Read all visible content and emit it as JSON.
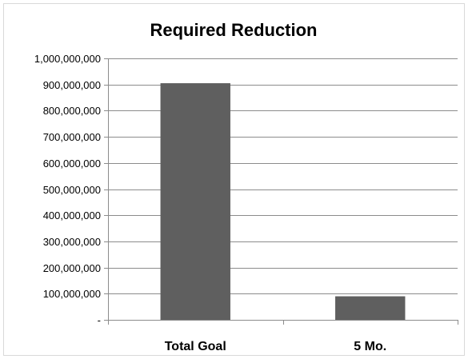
{
  "chart_data": {
    "type": "bar",
    "title": "Required Reduction",
    "xlabel": "",
    "ylabel": "",
    "categories": [
      "Total Goal",
      "5 Mo."
    ],
    "values": [
      905000000,
      90000000
    ],
    "ylim": [
      0,
      1000000000
    ],
    "yticks": [
      0,
      100000000,
      200000000,
      300000000,
      400000000,
      500000000,
      600000000,
      700000000,
      800000000,
      900000000,
      1000000000
    ],
    "ytick_labels": [
      "-",
      "100,000,000",
      "200,000,000",
      "300,000,000",
      "400,000,000",
      "500,000,000",
      "600,000,000",
      "700,000,000",
      "800,000,000",
      "900,000,000",
      "1,000,000,000"
    ],
    "grid": true,
    "legend": "none",
    "bar_color": "#5f5f5f",
    "grid_color": "#8c8c8c"
  }
}
